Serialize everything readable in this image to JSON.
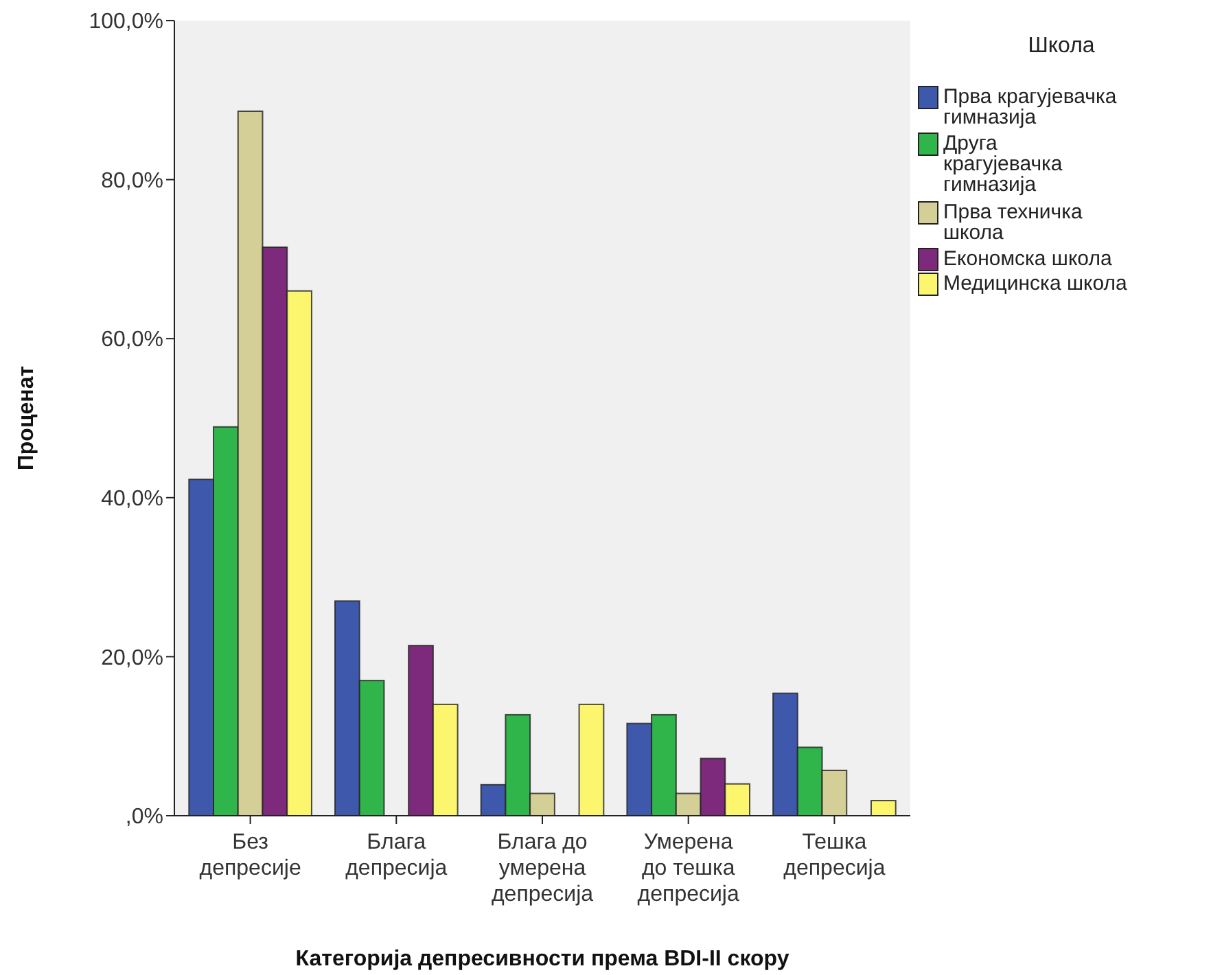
{
  "chart_data": {
    "type": "bar",
    "xlabel": "Категорија депресивности према BDI-II скору",
    "ylabel": "Проценат",
    "legend_title": "Школа",
    "legend": "right",
    "grid": false,
    "categories": [
      "Без депресије",
      "Блага депресија",
      "Блага до умерена депресија",
      "Умерена до тешка депресија",
      "Тешка депресија"
    ],
    "ylim": [
      0,
      100
    ],
    "yticks": [
      {
        "value": 0,
        "label": ",0%"
      },
      {
        "value": 20,
        "label": "20,0%"
      },
      {
        "value": 40,
        "label": "40,0%"
      },
      {
        "value": 60,
        "label": "60,0%"
      },
      {
        "value": 80,
        "label": "80,0%"
      },
      {
        "value": 100,
        "label": "100,0%"
      }
    ],
    "series": [
      {
        "name": "Прва крагујевачка гимназија",
        "color": "#3e58ac",
        "values": [
          42.3,
          27.0,
          3.9,
          11.6,
          15.4
        ]
      },
      {
        "name": "Друга крагујевачка гимназија",
        "color": "#2fb54a",
        "values": [
          48.9,
          17.0,
          12.7,
          12.7,
          8.6
        ]
      },
      {
        "name": "Прва техничка школа",
        "color": "#d4cf96",
        "values": [
          88.6,
          0,
          2.8,
          2.8,
          5.7
        ]
      },
      {
        "name": "Економска школа",
        "color": "#7e2a7c",
        "values": [
          71.5,
          21.4,
          0,
          7.2,
          0
        ]
      },
      {
        "name": "Медицинска школа",
        "color": "#fbf66e",
        "values": [
          66.0,
          14.0,
          14.0,
          4.0,
          1.9
        ]
      }
    ]
  }
}
